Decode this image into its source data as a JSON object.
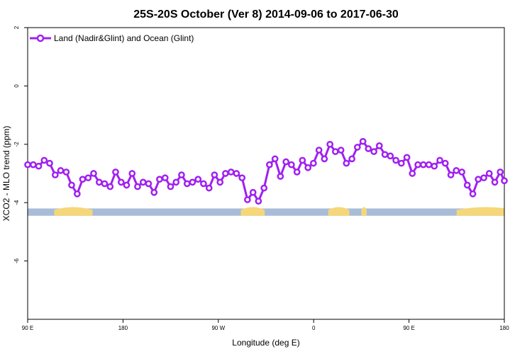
{
  "chart_data": {
    "type": "line",
    "title": "25S-20S October (Ver 8)   2014-09-06 to 2017-06-30",
    "xlabel": "Longitude (deg E)",
    "ylabel": "XCO2 - MLO trend (ppm)",
    "xlim": [
      90,
      450
    ],
    "ylim": [
      -8,
      2
    ],
    "x_ticks": [
      {
        "value": 90,
        "label": "90 E"
      },
      {
        "value": 162,
        "label": "180"
      },
      {
        "value": 234,
        "label": "90 W"
      },
      {
        "value": 306,
        "label": "0"
      },
      {
        "value": 378,
        "label": "90 E"
      },
      {
        "value": 450,
        "label": "180"
      }
    ],
    "y_ticks": [
      -6,
      -4,
      -2,
      0,
      2
    ],
    "legend": {
      "position": "top-left"
    },
    "series": [
      {
        "name": "Land (Nadir&Glint) and Ocean (Glint)",
        "color": "#a020f0",
        "x": [
          90,
          94.2,
          98.3,
          102.5,
          106.6,
          110.8,
          114.9,
          119.1,
          123.2,
          127.4,
          131.5,
          135.7,
          139.8,
          144,
          148.1,
          152.3,
          156.4,
          160.6,
          164.7,
          168.9,
          173,
          177.2,
          181.3,
          185.5,
          189.6,
          193.8,
          197.9,
          202.1,
          206.2,
          210.4,
          214.5,
          218.7,
          222.8,
          227,
          231.1,
          235.3,
          239.4,
          243.6,
          247.7,
          251.9,
          256,
          260.2,
          264.3,
          268.5,
          272.6,
          276.8,
          280.9,
          285.1,
          289.2,
          293.4,
          297.5,
          301.7,
          305.8,
          310,
          314.1,
          318.3,
          322.4,
          326.6,
          330.7,
          334.9,
          339,
          343.2,
          347.3,
          351.5,
          355.6,
          359.8,
          363.9,
          368.1,
          372.2,
          376.4,
          380.5,
          384.7,
          388.8,
          393,
          397.1,
          401.3,
          405.4,
          409.6,
          413.7,
          417.9,
          422,
          426.2,
          430.3,
          434.5,
          438.6,
          442.8,
          446.9,
          450
        ],
        "values": [
          -2.7,
          -2.7,
          -2.75,
          -2.55,
          -2.65,
          -3.05,
          -2.9,
          -2.95,
          -3.4,
          -3.7,
          -3.2,
          -3.15,
          -3.0,
          -3.3,
          -3.35,
          -3.45,
          -2.95,
          -3.3,
          -3.4,
          -3.0,
          -3.45,
          -3.3,
          -3.35,
          -3.65,
          -3.2,
          -3.15,
          -3.45,
          -3.3,
          -3.05,
          -3.35,
          -3.3,
          -3.2,
          -3.35,
          -3.5,
          -3.05,
          -3.3,
          -3.0,
          -2.95,
          -3.0,
          -3.15,
          -3.9,
          -3.65,
          -3.95,
          -3.5,
          -2.7,
          -2.5,
          -3.1,
          -2.6,
          -2.7,
          -2.95,
          -2.55,
          -2.8,
          -2.65,
          -2.2,
          -2.5,
          -2.0,
          -2.25,
          -2.2,
          -2.65,
          -2.5,
          -2.1,
          -1.9,
          -2.15,
          -2.25,
          -2.05,
          -2.35,
          -2.4,
          -2.55,
          -2.65,
          -2.45,
          -3.0,
          -2.7,
          -2.7,
          -2.7,
          -2.75,
          -2.55,
          -2.65,
          -3.05,
          -2.9,
          -2.95,
          -3.4,
          -3.7,
          -3.2,
          -3.15,
          -3.0,
          -3.3,
          -2.95,
          -3.25
        ]
      }
    ],
    "map_strip": {
      "y_range": [
        -4.45,
        -4.2
      ],
      "ocean_color": "#a8bcd8",
      "land_color": "#f5d77a",
      "land_spans": [
        [
          110,
          139
        ],
        [
          251,
          269
        ],
        [
          317,
          333
        ],
        [
          342,
          346
        ],
        [
          414,
          458
        ]
      ]
    }
  }
}
